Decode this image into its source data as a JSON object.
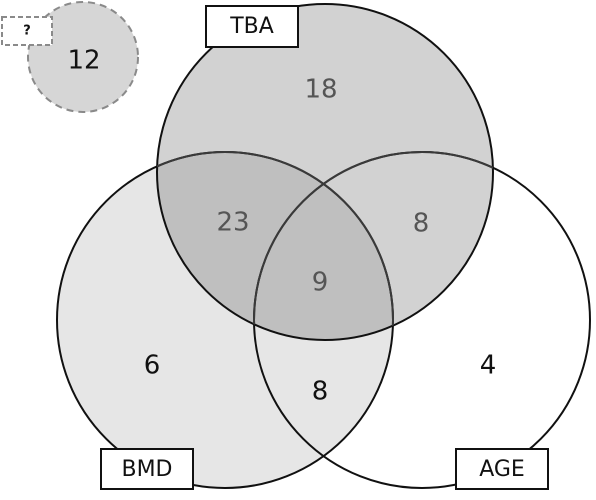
{
  "sets": {
    "tba": {
      "label": "TBA"
    },
    "bmd": {
      "label": "BMD"
    },
    "age": {
      "label": "AGE"
    }
  },
  "outside": {
    "label": "?",
    "count": "12"
  },
  "regions": {
    "tba_only": "18",
    "bmd_only": "6",
    "age_only": "4",
    "tba_bmd": "23",
    "tba_age": "8",
    "bmd_age": "8",
    "all_three": "9"
  },
  "colors": {
    "outline": "#111111",
    "dashed_outline": "#8a8a8a",
    "fill_tba": "#d2d2d2",
    "fill_bmd": "#e6e6e6",
    "fill_outside": "#d6d6d6"
  }
}
